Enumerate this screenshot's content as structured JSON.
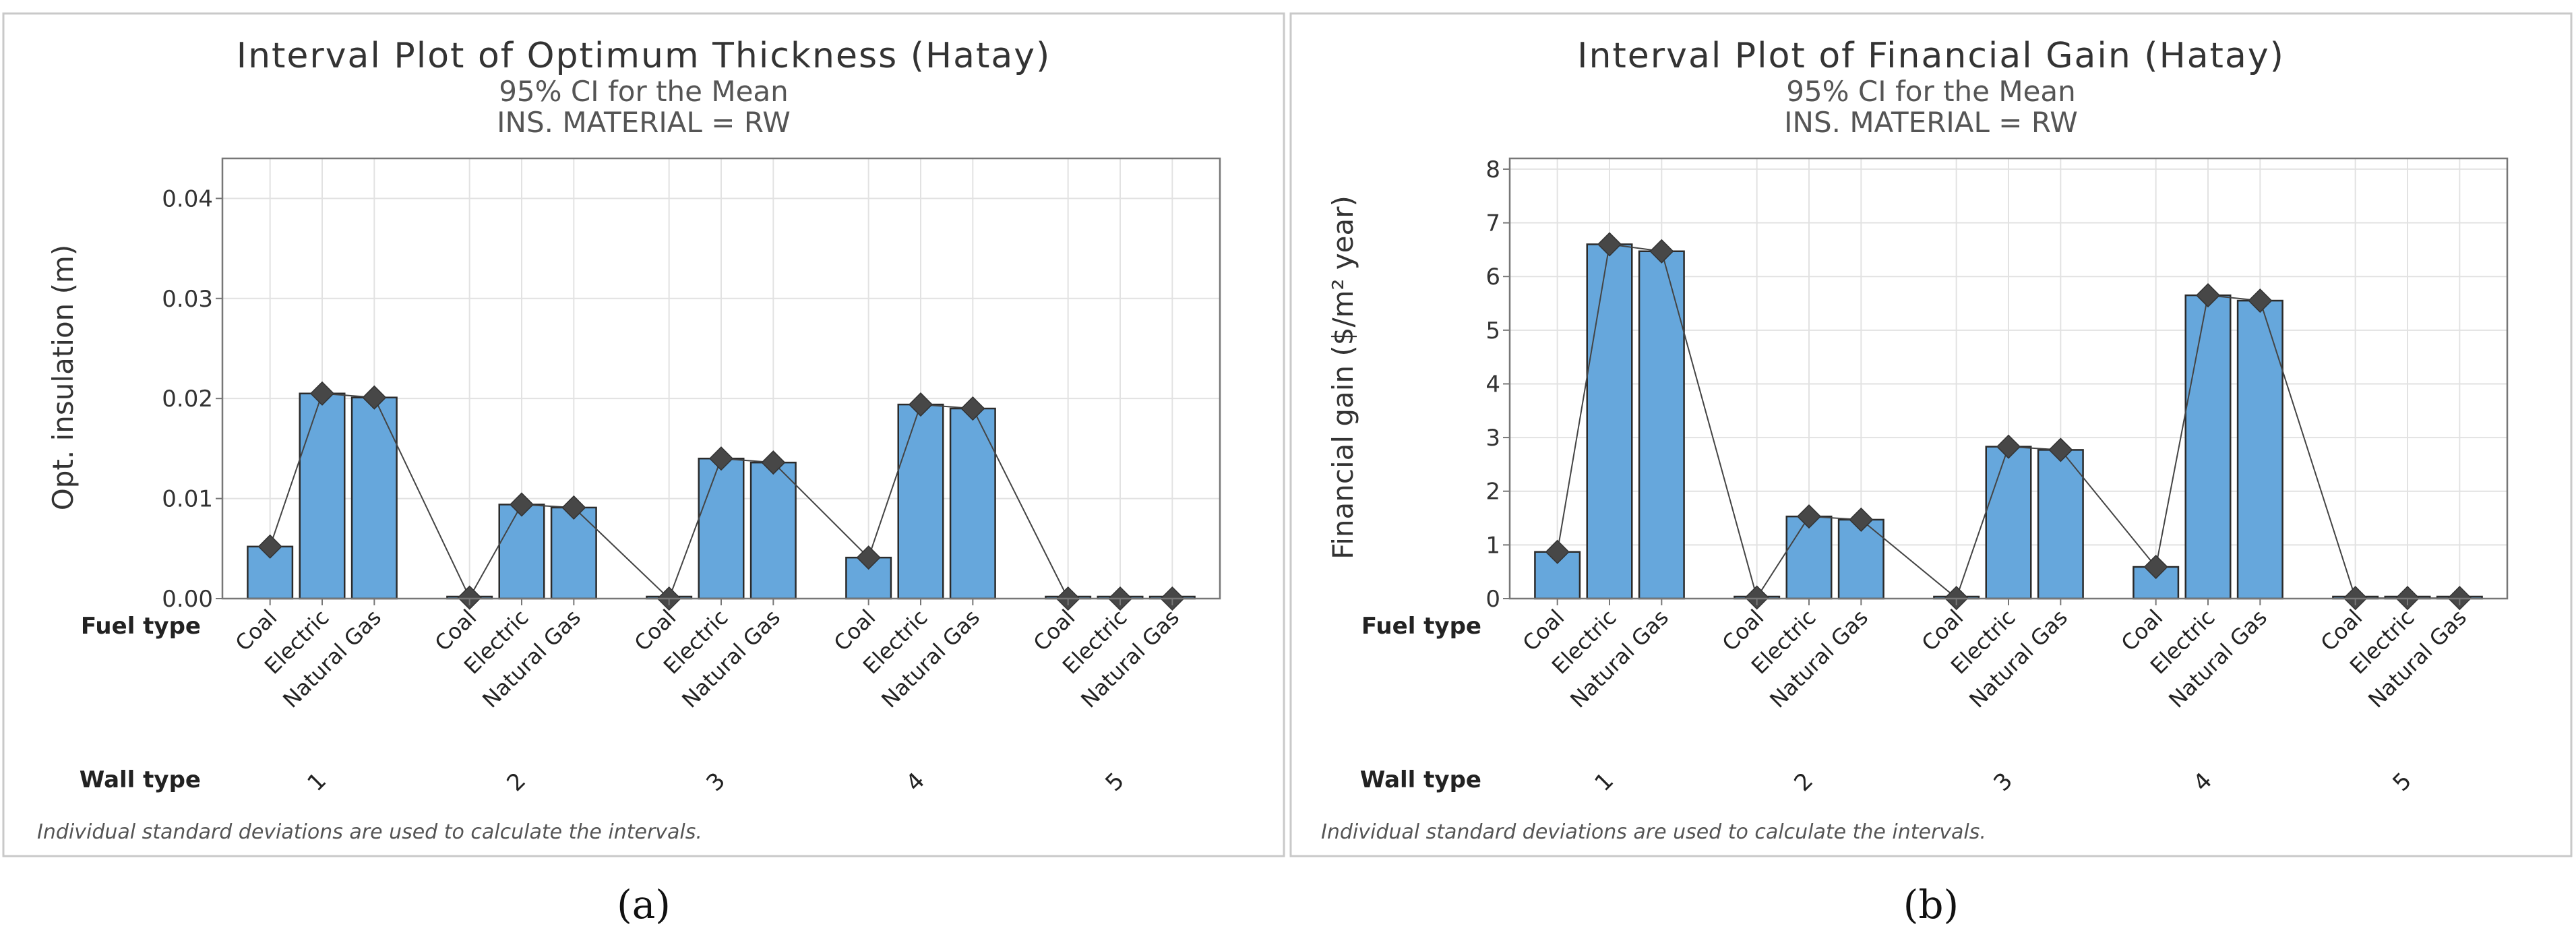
{
  "figure": {
    "panel_labels": [
      "(a)",
      "(b)"
    ],
    "colors": {
      "bar": "#66A7DC",
      "bar_edge": "#2B2B2B",
      "marker": "#474747",
      "grid": "#E2E2E2",
      "frame": "#C9C9C9",
      "axis": "#777777"
    }
  },
  "chart_data": [
    {
      "type": "bar",
      "title": "Interval Plot of Optimum Thickness (Hatay)",
      "subtitle1": "95% CI for the Mean",
      "subtitle2": "INS. MATERIAL = RW",
      "ylabel": "Opt. insulation (m)",
      "ylim": [
        0,
        0.044
      ],
      "yticks": [
        "0.00",
        "0.01",
        "0.02",
        "0.03",
        "0.04"
      ],
      "ytick_values": [
        0,
        0.01,
        0.02,
        0.03,
        0.04
      ],
      "fuel_label": "Fuel type",
      "wall_label": "Wall type",
      "fuel_types": [
        "Coal",
        "Electric",
        "Natural Gas"
      ],
      "wall_types": [
        "1",
        "2",
        "3",
        "4",
        "5"
      ],
      "values": [
        0.0052,
        0.0205,
        0.0201,
        0.0001,
        0.0094,
        0.0091,
        0.0,
        0.014,
        0.0136,
        0.0041,
        0.0194,
        0.019,
        0.0,
        0.0,
        0.0
      ],
      "footnote": "Individual standard deviations are used to calculate the intervals."
    },
    {
      "type": "bar",
      "title": "Interval Plot of Financial Gain (Hatay)",
      "subtitle1": "95% CI for the Mean",
      "subtitle2": "INS. MATERIAL = RW",
      "ylabel": "Financial gain ($/m² year)",
      "ylim": [
        0,
        8.2
      ],
      "yticks": [
        "0",
        "1",
        "2",
        "3",
        "4",
        "5",
        "6",
        "7",
        "8"
      ],
      "ytick_values": [
        0,
        1,
        2,
        3,
        4,
        5,
        6,
        7,
        8
      ],
      "fuel_label": "Fuel type",
      "wall_label": "Wall type",
      "fuel_types": [
        "Coal",
        "Electric",
        "Natural Gas"
      ],
      "wall_types": [
        "1",
        "2",
        "3",
        "4",
        "5"
      ],
      "values": [
        0.87,
        6.6,
        6.47,
        0.02,
        1.53,
        1.47,
        0.01,
        2.83,
        2.77,
        0.59,
        5.65,
        5.55,
        0.01,
        0.01,
        0.01
      ],
      "footnote": "Individual standard deviations are used to calculate the intervals."
    }
  ]
}
